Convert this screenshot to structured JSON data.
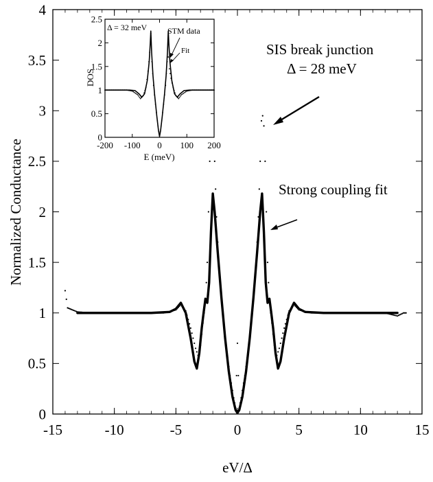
{
  "chart_data": [
    {
      "type": "scatter",
      "xlabel": "eV/Δ",
      "ylabel": "Normalized Conductance",
      "xlim": [
        -15,
        15
      ],
      "ylim": [
        0,
        4
      ],
      "xticks": [
        -15,
        -10,
        -5,
        0,
        5,
        10,
        15
      ],
      "yticks": [
        0,
        0.5,
        1,
        1.5,
        2,
        2.5,
        3,
        3.5,
        4
      ],
      "ytick_labels": [
        "0",
        "0.5",
        "1",
        "1.5",
        "2",
        "2.5",
        "3",
        "3.5",
        "4"
      ],
      "grid": false,
      "series": [
        {
          "name": "SIS break junction",
          "style": "dotted",
          "points": [
            [
              -14.0,
              1.22
            ],
            [
              -13.8,
              1.05
            ],
            [
              -13.4,
              1.03
            ],
            [
              -13.0,
              1.01
            ],
            [
              -12.0,
              1.0
            ],
            [
              -10.0,
              1.0
            ],
            [
              -8.0,
              1.0
            ],
            [
              -6.0,
              1.0
            ],
            [
              -5.0,
              1.03
            ],
            [
              -4.6,
              1.08
            ],
            [
              -4.2,
              1.02
            ],
            [
              -3.8,
              0.85
            ],
            [
              -3.4,
              0.65
            ],
            [
              -3.2,
              0.58
            ],
            [
              -3.0,
              0.68
            ],
            [
              -2.8,
              0.9
            ],
            [
              -2.6,
              1.1
            ],
            [
              -2.45,
              1.5
            ],
            [
              -2.35,
              2.0
            ],
            [
              -2.25,
              2.5
            ],
            [
              -2.15,
              2.85
            ],
            [
              -2.05,
              2.98
            ],
            [
              -1.95,
              2.9
            ],
            [
              -1.85,
              2.5
            ],
            [
              -1.7,
              1.95
            ],
            [
              -1.5,
              1.45
            ],
            [
              -1.2,
              1.0
            ],
            [
              -0.9,
              0.65
            ],
            [
              -0.6,
              0.38
            ],
            [
              -0.3,
              0.16
            ],
            [
              -0.15,
              0.06
            ],
            [
              0.0,
              0.7
            ],
            [
              0.15,
              0.06
            ],
            [
              0.3,
              0.16
            ],
            [
              0.6,
              0.38
            ],
            [
              0.9,
              0.65
            ],
            [
              1.2,
              1.0
            ],
            [
              1.5,
              1.45
            ],
            [
              1.7,
              1.95
            ],
            [
              1.85,
              2.5
            ],
            [
              1.95,
              2.9
            ],
            [
              2.05,
              2.95
            ],
            [
              2.15,
              2.85
            ],
            [
              2.25,
              2.5
            ],
            [
              2.35,
              2.0
            ],
            [
              2.45,
              1.5
            ],
            [
              2.6,
              1.1
            ],
            [
              2.8,
              0.9
            ],
            [
              3.0,
              0.68
            ],
            [
              3.2,
              0.58
            ],
            [
              3.4,
              0.65
            ],
            [
              3.8,
              0.85
            ],
            [
              4.2,
              1.02
            ],
            [
              4.6,
              1.08
            ],
            [
              5.0,
              1.03
            ],
            [
              6.0,
              1.0
            ],
            [
              8.0,
              1.0
            ],
            [
              10.0,
              1.0
            ],
            [
              12.0,
              1.0
            ],
            [
              13.0,
              0.97
            ],
            [
              13.5,
              1.0
            ],
            [
              13.7,
              1.0
            ]
          ]
        },
        {
          "name": "Strong coupling fit",
          "style": "solid",
          "points": [
            [
              -13.0,
              1.0
            ],
            [
              -10.0,
              1.0
            ],
            [
              -7.0,
              1.0
            ],
            [
              -5.5,
              1.01
            ],
            [
              -5.0,
              1.04
            ],
            [
              -4.6,
              1.1
            ],
            [
              -4.2,
              1.0
            ],
            [
              -3.8,
              0.75
            ],
            [
              -3.5,
              0.52
            ],
            [
              -3.3,
              0.45
            ],
            [
              -3.1,
              0.6
            ],
            [
              -2.9,
              0.85
            ],
            [
              -2.75,
              1.0
            ],
            [
              -2.6,
              1.14
            ],
            [
              -2.45,
              1.1
            ],
            [
              -2.3,
              1.3
            ],
            [
              -2.15,
              1.8
            ],
            [
              -2.0,
              2.18
            ],
            [
              -1.85,
              2.0
            ],
            [
              -1.6,
              1.6
            ],
            [
              -1.3,
              1.15
            ],
            [
              -1.0,
              0.75
            ],
            [
              -0.7,
              0.42
            ],
            [
              -0.4,
              0.17
            ],
            [
              -0.15,
              0.04
            ],
            [
              0.0,
              0.01
            ],
            [
              0.15,
              0.04
            ],
            [
              0.4,
              0.17
            ],
            [
              0.7,
              0.42
            ],
            [
              1.0,
              0.75
            ],
            [
              1.3,
              1.15
            ],
            [
              1.6,
              1.6
            ],
            [
              1.85,
              2.0
            ],
            [
              2.0,
              2.18
            ],
            [
              2.15,
              1.8
            ],
            [
              2.3,
              1.3
            ],
            [
              2.45,
              1.1
            ],
            [
              2.6,
              1.14
            ],
            [
              2.75,
              1.0
            ],
            [
              2.9,
              0.85
            ],
            [
              3.1,
              0.6
            ],
            [
              3.3,
              0.45
            ],
            [
              3.5,
              0.52
            ],
            [
              3.8,
              0.75
            ],
            [
              4.2,
              1.0
            ],
            [
              4.6,
              1.1
            ],
            [
              5.0,
              1.04
            ],
            [
              5.5,
              1.01
            ],
            [
              7.0,
              1.0
            ],
            [
              10.0,
              1.0
            ],
            [
              13.0,
              1.0
            ]
          ]
        }
      ],
      "annotations": [
        {
          "text": "SIS break junction"
        },
        {
          "text": "Δ = 28 meV"
        },
        {
          "text": "Strong coupling fit"
        }
      ]
    },
    {
      "type": "scatter",
      "inset": true,
      "xlabel": "E (meV)",
      "ylabel": "DOS",
      "xlim": [
        -200,
        200
      ],
      "ylim": [
        0,
        2.5
      ],
      "xticks": [
        -200,
        -100,
        0,
        100,
        200
      ],
      "xtick_labels": [
        "-200",
        "-100",
        "0",
        "100",
        "200"
      ],
      "yticks": [
        0,
        0.5,
        1,
        1.5,
        2,
        2.5
      ],
      "ytick_labels": [
        "0",
        "0.5",
        "1",
        "1.5",
        "2",
        "2.5"
      ],
      "series": [
        {
          "name": "STM data",
          "style": "dotted",
          "points": [
            [
              -200,
              1.0
            ],
            [
              -160,
              1.0
            ],
            [
              -120,
              1.0
            ],
            [
              -100,
              0.98
            ],
            [
              -80,
              0.9
            ],
            [
              -70,
              0.82
            ],
            [
              -60,
              0.88
            ],
            [
              -50,
              1.05
            ],
            [
              -42,
              1.4
            ],
            [
              -36,
              1.8
            ],
            [
              -32,
              2.2
            ],
            [
              -28,
              1.6
            ],
            [
              -22,
              1.1
            ],
            [
              -15,
              0.7
            ],
            [
              -8,
              0.35
            ],
            [
              -3,
              0.12
            ],
            [
              0,
              0.03
            ],
            [
              3,
              0.12
            ],
            [
              8,
              0.35
            ],
            [
              15,
              0.7
            ],
            [
              22,
              1.1
            ],
            [
              28,
              1.6
            ],
            [
              32,
              1.7
            ],
            [
              36,
              1.45
            ],
            [
              42,
              1.25
            ],
            [
              50,
              1.05
            ],
            [
              60,
              0.88
            ],
            [
              70,
              0.82
            ],
            [
              80,
              0.9
            ],
            [
              100,
              0.98
            ],
            [
              120,
              1.0
            ],
            [
              160,
              1.0
            ],
            [
              200,
              1.0
            ]
          ]
        },
        {
          "name": "Fit",
          "style": "solid",
          "points": [
            [
              -200,
              1.0
            ],
            [
              -150,
              1.0
            ],
            [
              -110,
              1.0
            ],
            [
              -90,
              0.99
            ],
            [
              -75,
              0.92
            ],
            [
              -65,
              0.85
            ],
            [
              -55,
              0.92
            ],
            [
              -45,
              1.2
            ],
            [
              -38,
              1.6
            ],
            [
              -34,
              2.0
            ],
            [
              -32,
              2.25
            ],
            [
              -29,
              1.8
            ],
            [
              -24,
              1.3
            ],
            [
              -18,
              0.9
            ],
            [
              -10,
              0.45
            ],
            [
              -4,
              0.15
            ],
            [
              0,
              0.02
            ],
            [
              4,
              0.15
            ],
            [
              10,
              0.45
            ],
            [
              18,
              0.9
            ],
            [
              24,
              1.3
            ],
            [
              29,
              1.8
            ],
            [
              32,
              2.25
            ],
            [
              34,
              2.0
            ],
            [
              38,
              1.6
            ],
            [
              45,
              1.2
            ],
            [
              55,
              0.92
            ],
            [
              65,
              0.85
            ],
            [
              75,
              0.92
            ],
            [
              90,
              0.99
            ],
            [
              110,
              1.0
            ],
            [
              150,
              1.0
            ],
            [
              200,
              1.0
            ]
          ]
        }
      ],
      "annotations": [
        {
          "text": "Δ = 32 meV"
        },
        {
          "text": "STM data"
        },
        {
          "text": "Fit"
        }
      ]
    }
  ]
}
